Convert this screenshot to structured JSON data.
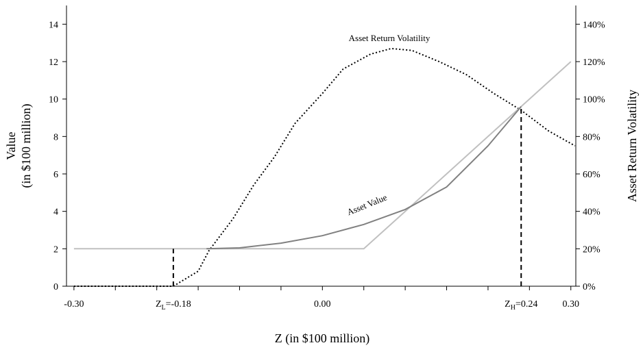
{
  "chart_data": {
    "type": "line",
    "xlabel": "Z (in $100 million)",
    "ylabel": [
      "Value",
      "(in $100 million)"
    ],
    "y2label": "Asset Return Volatility",
    "xlim": [
      -0.309,
      0.306
    ],
    "xticks": [
      {
        "value": -0.3,
        "label": "-0.30"
      },
      {
        "value": 0,
        "label": "0.00"
      },
      {
        "value": 0.3,
        "label": "0.30"
      }
    ],
    "minor_xticks": [
      -0.25,
      -0.2,
      -0.15,
      -0.1,
      -0.05,
      0.05,
      0.1,
      0.15,
      0.2,
      0.25
    ],
    "ylim": [
      0,
      15
    ],
    "yticks": [
      0,
      2,
      4,
      6,
      8,
      10,
      12,
      14
    ],
    "y2lim": [
      0,
      150
    ],
    "y2ticks": [
      {
        "value": 0,
        "label": "0%"
      },
      {
        "value": 20,
        "label": "20%"
      },
      {
        "value": 40,
        "label": "40%"
      },
      {
        "value": 60,
        "label": "60%"
      },
      {
        "value": 80,
        "label": "80%"
      },
      {
        "value": 100,
        "label": "100%"
      },
      {
        "value": 120,
        "label": "120%"
      },
      {
        "value": 140,
        "label": "140%"
      }
    ],
    "series": [
      {
        "name": "Asset Return Volatility",
        "color": "#000000",
        "dash": "dotted",
        "axis": "y2",
        "x": [
          -0.3,
          -0.18,
          -0.15,
          -0.137,
          -0.108,
          -0.083,
          -0.058,
          -0.033,
          0,
          0.025,
          0.058,
          0.083,
          0.108,
          0.141,
          0.174,
          0.207,
          0.24,
          0.273,
          0.305
        ],
        "values": [
          0,
          0,
          8,
          19,
          36,
          54,
          69,
          87,
          103,
          116,
          124,
          127,
          126,
          120,
          113,
          103,
          94,
          83,
          75
        ]
      },
      {
        "color": "#c0c0c0",
        "dash": "solid",
        "x": [
          -0.3,
          0.05,
          0.1,
          0.15,
          0.2,
          0.25,
          0.3
        ],
        "values": [
          2,
          2,
          4,
          6,
          8,
          10,
          12
        ]
      },
      {
        "name": "Asset Value",
        "color": "#808080",
        "dash": "solid",
        "x": [
          -0.14,
          -0.1,
          -0.05,
          0,
          0.05,
          0.1,
          0.15,
          0.2,
          0.24
        ],
        "values": [
          2,
          2.05,
          2.3,
          2.7,
          3.3,
          4.1,
          5.3,
          7.5,
          9.6
        ]
      }
    ],
    "annotations": [
      {
        "parts": [
          "Z",
          "L",
          "=-0.18"
        ],
        "x": -0.18,
        "y": 2
      },
      {
        "parts": [
          "Z",
          "H",
          "=0.24"
        ],
        "x": 0.24,
        "y": 9.6
      }
    ]
  }
}
